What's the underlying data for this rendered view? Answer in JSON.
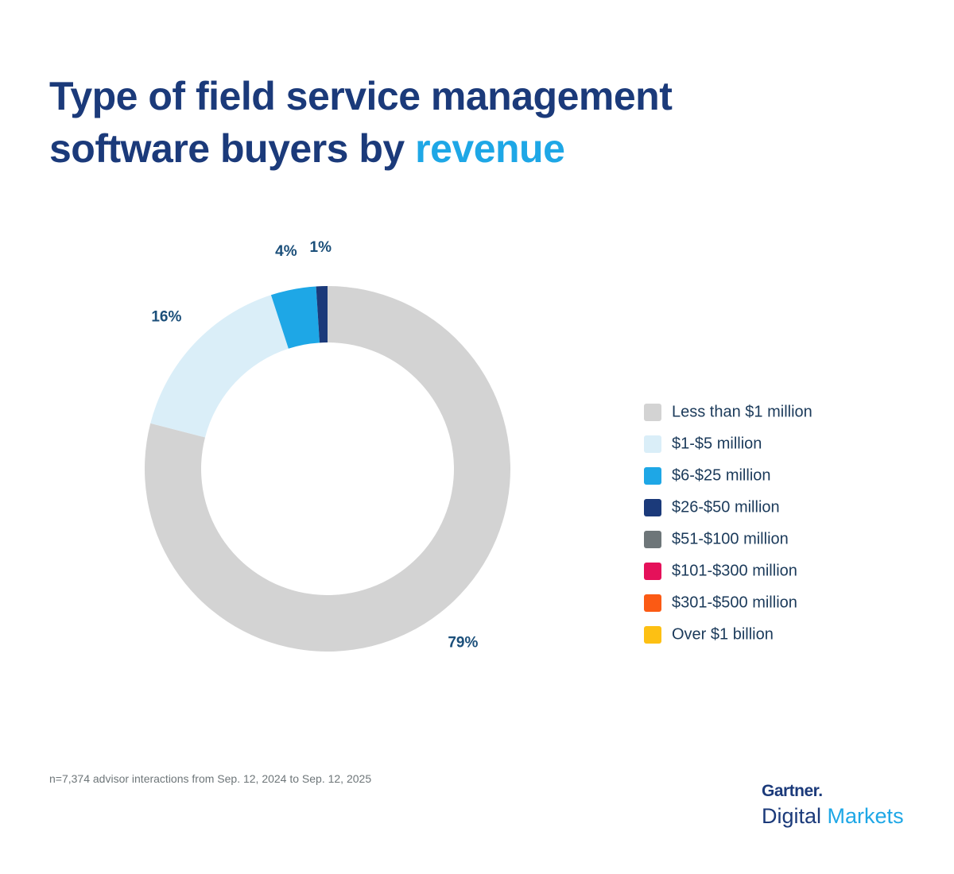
{
  "chart_data": {
    "type": "donut",
    "title": "Type of field service management software buyers by",
    "title_highlight": "revenue",
    "categories": [
      "Less than $1 million",
      "$1-$5 million",
      "$6-$25 million",
      "$26-$50 million",
      "$51-$100 million",
      "$101-$300 million",
      "$301-$500 million",
      "Over $1 billion"
    ],
    "values": [
      79,
      16,
      4,
      1,
      0,
      0,
      0,
      0
    ],
    "value_labels": [
      "79%",
      "16%",
      "4%",
      "1%",
      null,
      null,
      null,
      null
    ],
    "colors": [
      "#d3d3d3",
      "#daeef8",
      "#1ea7e6",
      "#1b3a7a",
      "#6e7679",
      "#e5115a",
      "#fb5a14",
      "#fdc013"
    ],
    "legend": "right"
  },
  "footnote": "n=7,374 advisor interactions from Sep. 12, 2024 to Sep. 12, 2025",
  "brand": {
    "name": "Gartner.",
    "product": [
      "Digital",
      "Markets"
    ]
  }
}
